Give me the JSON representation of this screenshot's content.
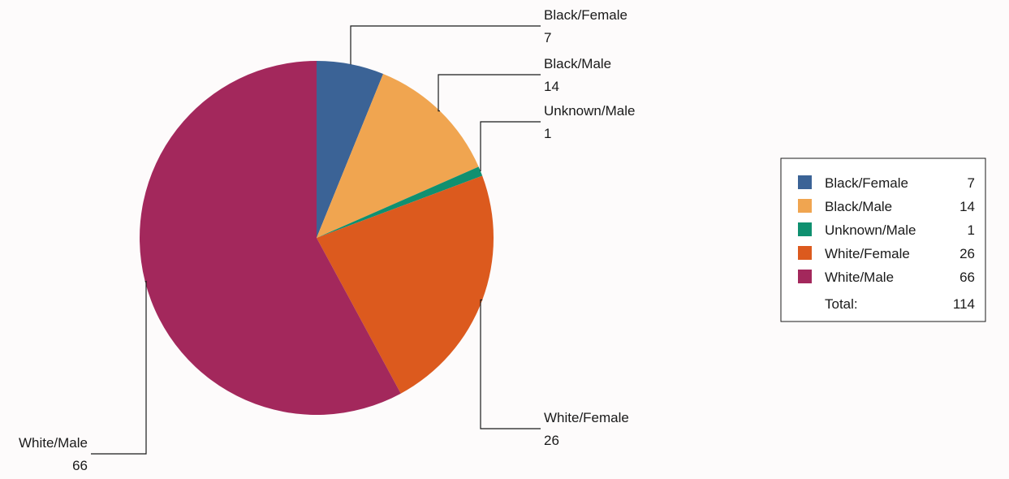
{
  "chart_data": {
    "type": "pie",
    "title": "",
    "categories": [
      "Black/Female",
      "Black/Male",
      "Unknown/Male",
      "White/Female",
      "White/Male"
    ],
    "values": [
      7,
      14,
      1,
      26,
      66
    ],
    "colors": [
      "#3b6396",
      "#f0a550",
      "#0f9070",
      "#dc5a1e",
      "#a3285c"
    ],
    "legend": {
      "position": "right",
      "total_label": "Total:",
      "total_value": 114
    }
  }
}
